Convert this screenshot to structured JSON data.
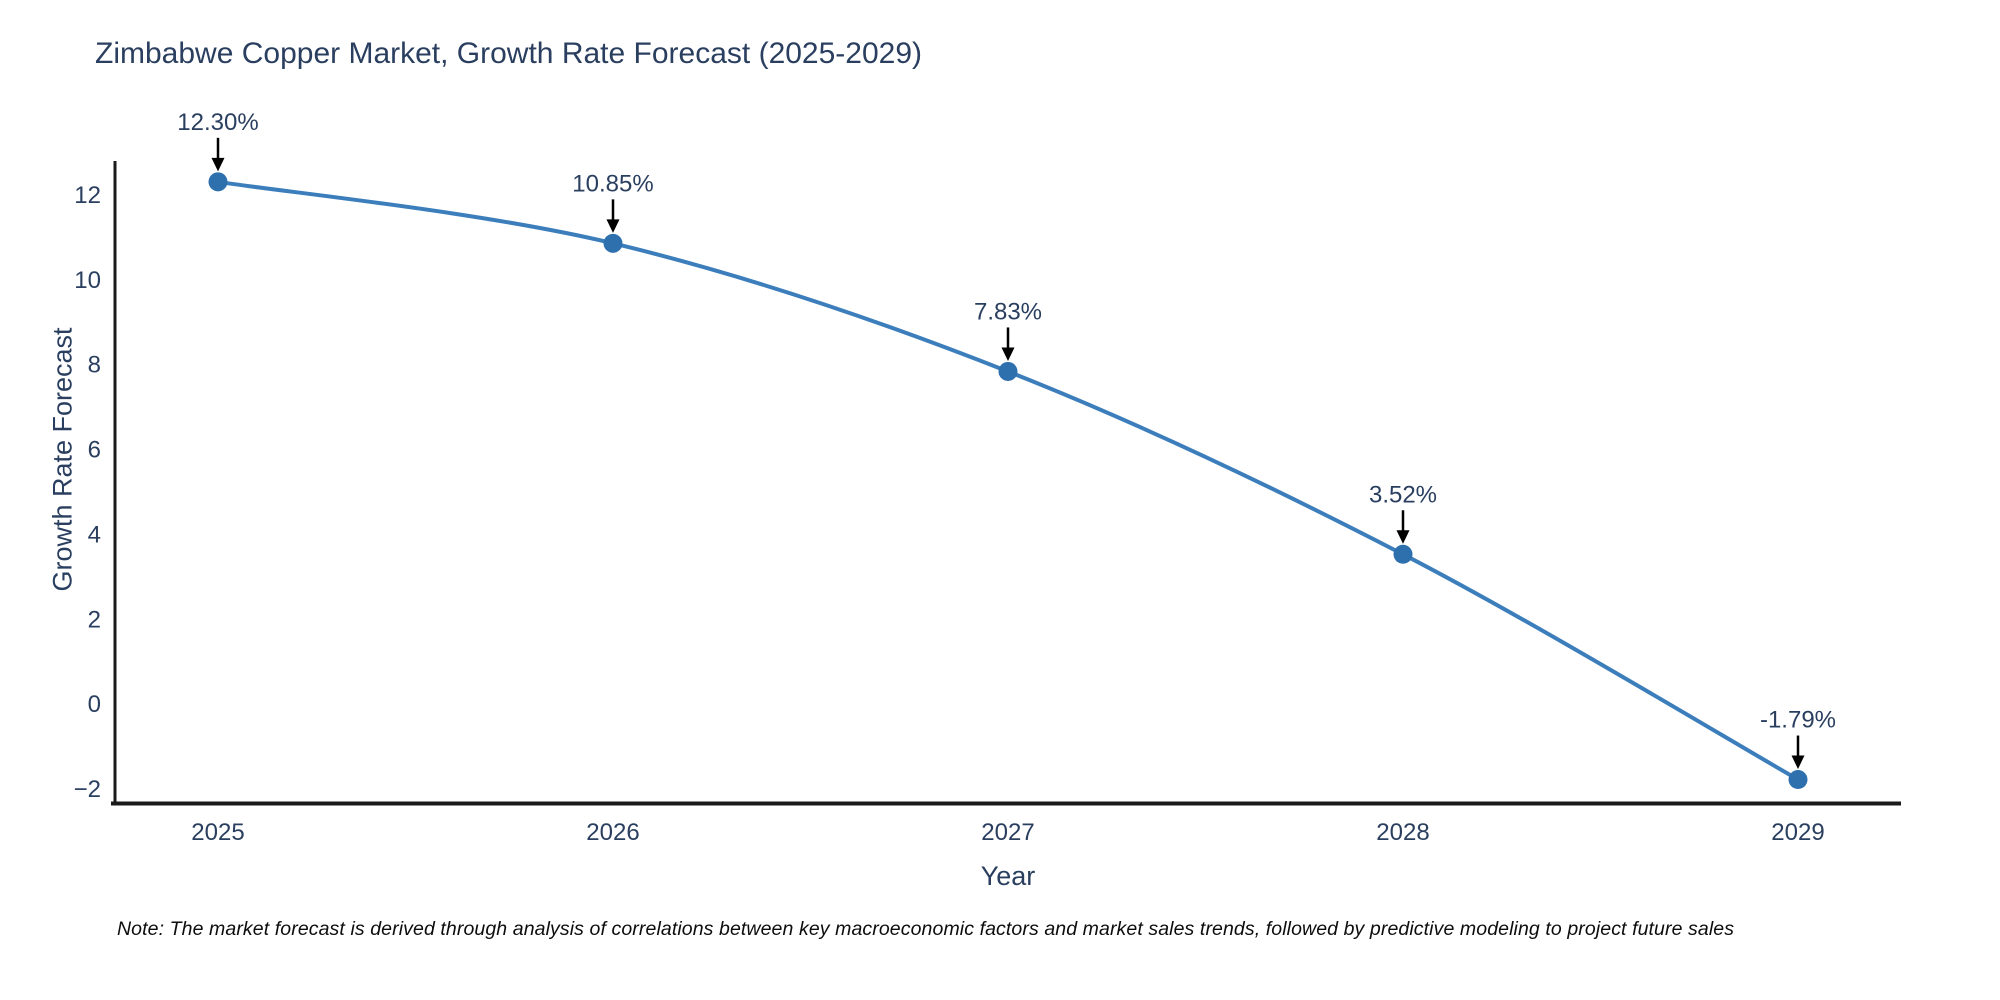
{
  "title": "Zimbabwe Copper Market, Growth Rate Forecast (2025-2029)",
  "note": "Note: The market forecast is derived through analysis of correlations between key macroeconomic factors and market sales trends, followed by predictive modeling to project future sales",
  "chart_data": {
    "type": "line",
    "title": "Zimbabwe Copper Market, Growth Rate Forecast (2025-2029)",
    "xlabel": "Year",
    "ylabel": "Growth Rate Forecast",
    "x": [
      2025,
      2026,
      2027,
      2028,
      2029
    ],
    "x_tick_labels": [
      "2025",
      "2026",
      "2027",
      "2028",
      "2029"
    ],
    "series": [
      {
        "name": "Growth Rate Forecast",
        "values": [
          12.3,
          10.85,
          7.83,
          3.52,
          -1.79
        ],
        "point_labels": [
          "12.30%",
          "10.85%",
          "7.83%",
          "3.52%",
          "-1.79%"
        ]
      }
    ],
    "y_ticks": [
      12,
      10,
      8,
      6,
      4,
      2,
      0,
      -2
    ],
    "y_tick_labels": [
      "12",
      "10",
      "8",
      "6",
      "4",
      "2",
      "0",
      "−2"
    ],
    "ylim": [
      -2.35,
      12.8
    ],
    "grid": false,
    "legend_position": "none",
    "line_shape": "spline",
    "annotations_have_arrows": true,
    "colors": {
      "line": "#3c7ebb",
      "marker": "#2e6fae",
      "axis": "#1a1a1a",
      "text": "#2a3f5f",
      "arrow": "#000000"
    }
  }
}
